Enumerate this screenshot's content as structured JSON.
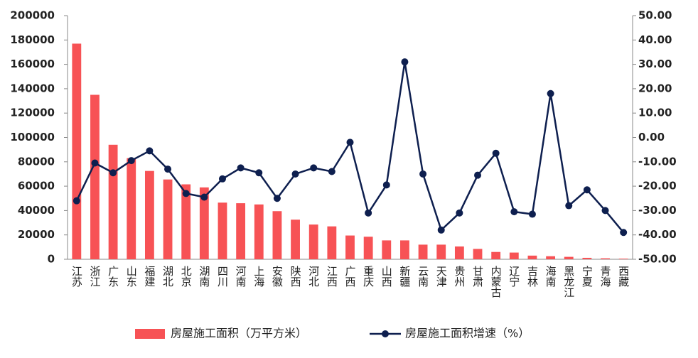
{
  "chart_data": {
    "type": "bar",
    "categories": [
      "江苏",
      "浙江",
      "广东",
      "山东",
      "福建",
      "湖北",
      "北京",
      "湖南",
      "四川",
      "河南",
      "上海",
      "安徽",
      "陕西",
      "河北",
      "江西",
      "广西",
      "重庆",
      "山西",
      "新疆",
      "云南",
      "天津",
      "贵州",
      "甘肃",
      "内蒙古",
      "辽宁",
      "吉林",
      "海南",
      "黑龙江",
      "宁夏",
      "青海",
      "西藏"
    ],
    "series": [
      {
        "name": "房屋施工面积（万平方米）",
        "type": "bar",
        "color": "#f75255",
        "values": [
          177000,
          135000,
          94000,
          83000,
          72500,
          65500,
          61500,
          59000,
          46500,
          46000,
          45000,
          39500,
          32500,
          28500,
          27000,
          19500,
          18500,
          15500,
          15500,
          12000,
          12000,
          10500,
          8500,
          6000,
          5500,
          3000,
          2500,
          2000,
          1200,
          800,
          500
        ]
      },
      {
        "name": "房屋施工面积增速（%）",
        "type": "line",
        "color": "#0e1f4f",
        "axis": "y2",
        "values": [
          -26,
          -10.5,
          -14.5,
          -9.5,
          -5.5,
          -13,
          -23,
          -24.5,
          -17,
          -12.5,
          -14.5,
          -25,
          -15,
          -12.5,
          -14,
          -2,
          -31,
          -19.5,
          31,
          -15,
          -38,
          -31,
          -15.5,
          -6.5,
          -30.5,
          -31.5,
          18,
          -28,
          -21.5,
          -30,
          -39
        ]
      }
    ],
    "ylim": [
      0,
      200000
    ],
    "yticks": [
      0,
      20000,
      40000,
      60000,
      80000,
      100000,
      120000,
      140000,
      160000,
      180000,
      200000
    ],
    "y2lim": [
      -50,
      50
    ],
    "y2ticks": [
      {
        "value": -50,
        "label": "-50.00"
      },
      {
        "value": -40,
        "label": "-40.00"
      },
      {
        "value": -30,
        "label": "-30.00"
      },
      {
        "value": -20,
        "label": "-20.00"
      },
      {
        "value": -10,
        "label": "-10.00"
      },
      {
        "value": 0,
        "label": "0.00"
      },
      {
        "value": 10,
        "label": "10.00"
      },
      {
        "value": 20,
        "label": "20.00"
      },
      {
        "value": 30,
        "label": "30.00"
      },
      {
        "value": 40,
        "label": "40.00"
      },
      {
        "value": 50,
        "label": "50.00"
      }
    ],
    "grid": false,
    "legend": "bottom"
  }
}
